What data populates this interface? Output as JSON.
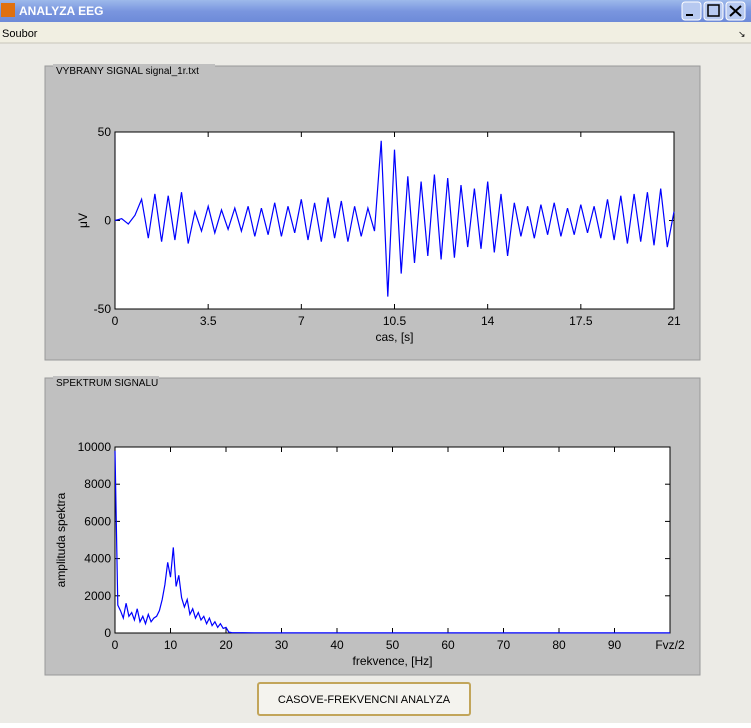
{
  "window": {
    "title": "ANALYZA EEG"
  },
  "menu": {
    "items": [
      "Soubor"
    ]
  },
  "panels": [
    {
      "title": "VYBRANY SIGNAL signal_1r.txt"
    },
    {
      "title": "SPEKTRUM SIGNALU"
    }
  ],
  "button": {
    "label": "CASOVE-FREKVENCNI ANALYZA"
  },
  "chart_data": [
    {
      "type": "line",
      "xlabel": "cas, [s]",
      "ylabel": "μV",
      "x": [
        0,
        0.25,
        0.5,
        0.75,
        1,
        1.25,
        1.5,
        1.75,
        2,
        2.25,
        2.5,
        2.75,
        3,
        3.25,
        3.5,
        3.75,
        4,
        4.25,
        4.5,
        4.75,
        5,
        5.25,
        5.5,
        5.75,
        6,
        6.25,
        6.5,
        6.75,
        7,
        7.25,
        7.5,
        7.75,
        8,
        8.25,
        8.5,
        8.75,
        9,
        9.25,
        9.5,
        9.75,
        10,
        10.25,
        10.5,
        10.75,
        11,
        11.25,
        11.5,
        11.75,
        12,
        12.25,
        12.5,
        12.75,
        13,
        13.25,
        13.5,
        13.75,
        14,
        14.25,
        14.5,
        14.75,
        15,
        15.25,
        15.5,
        15.75,
        16,
        16.25,
        16.5,
        16.75,
        17,
        17.25,
        17.5,
        17.75,
        18,
        18.25,
        18.5,
        18.75,
        19,
        19.25,
        19.5,
        19.75,
        20,
        20.25,
        20.5,
        20.75,
        21
      ],
      "series": [
        {
          "color": "#0000ff",
          "values": [
            0,
            1,
            -2,
            3,
            12,
            -10,
            15,
            -12,
            14,
            -11,
            16,
            -13,
            5,
            -6,
            8,
            -7,
            6,
            -5,
            7,
            -6,
            8,
            -9,
            7,
            -8,
            10,
            -9,
            8,
            -7,
            12,
            -11,
            10,
            -12,
            13,
            -10,
            11,
            -12,
            8,
            -9,
            7,
            -6,
            45,
            -43,
            40,
            -30,
            25,
            -24,
            22,
            -20,
            26,
            -22,
            24,
            -21,
            20,
            -15,
            18,
            -16,
            22,
            -18,
            15,
            -20,
            10,
            -9,
            8,
            -10,
            9,
            -8,
            10,
            -9,
            7,
            -8,
            9,
            -7,
            8,
            -10,
            12,
            -11,
            14,
            -13,
            15,
            -12,
            16,
            -14,
            18,
            -15,
            5
          ]
        }
      ],
      "xlim": [
        0,
        21
      ],
      "ylim": [
        -50,
        50
      ],
      "xticks": [
        0,
        3.5,
        7,
        10.5,
        14,
        17.5,
        21
      ],
      "yticks": [
        -50,
        0,
        50
      ]
    },
    {
      "type": "line",
      "xlabel": "frekvence, [Hz]",
      "ylabel": "amplituda spektra",
      "x": [
        0,
        0.5,
        1,
        1.5,
        2,
        2.5,
        3,
        3.5,
        4,
        4.5,
        5,
        5.5,
        6,
        6.5,
        7,
        7.5,
        8,
        8.5,
        9,
        9.5,
        10,
        10.5,
        11,
        11.5,
        12,
        12.5,
        13,
        13.5,
        14,
        14.5,
        15,
        15.5,
        16,
        16.5,
        17,
        17.5,
        18,
        18.5,
        19,
        19.5,
        20,
        20.5,
        21,
        25,
        30,
        35,
        40,
        45,
        50,
        55,
        60,
        65,
        70,
        75,
        80,
        85,
        90,
        95,
        100
      ],
      "series": [
        {
          "color": "#0000ff",
          "values": [
            9800,
            1500,
            1200,
            800,
            1600,
            900,
            1100,
            700,
            1300,
            600,
            900,
            500,
            1000,
            600,
            800,
            900,
            1200,
            1800,
            2600,
            3800,
            3000,
            4600,
            2500,
            3100,
            1900,
            1400,
            1800,
            1000,
            1300,
            800,
            1100,
            700,
            900,
            500,
            800,
            400,
            600,
            300,
            500,
            250,
            300,
            50,
            20,
            10,
            8,
            5,
            5,
            5,
            5,
            5,
            5,
            5,
            5,
            5,
            5,
            5,
            5,
            5,
            5
          ]
        }
      ],
      "xlim": [
        0,
        100
      ],
      "ylim": [
        0,
        10000
      ],
      "xticks": [
        0,
        10,
        20,
        30,
        40,
        50,
        60,
        70,
        80,
        90,
        {
          "value": 100,
          "label": "Fvz/2"
        }
      ],
      "yticks": [
        0,
        2000,
        4000,
        6000,
        8000,
        10000
      ]
    }
  ]
}
